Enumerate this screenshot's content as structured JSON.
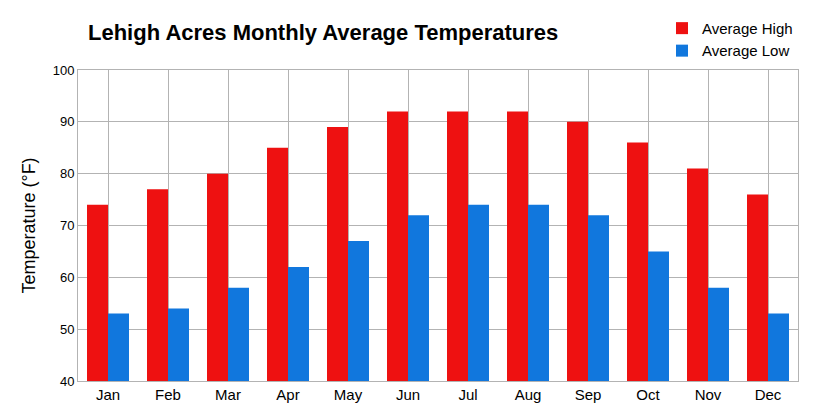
{
  "chart_data": {
    "type": "bar",
    "title": "Lehigh Acres Monthly Average Temperatures",
    "y_label": "Temperature (°F)",
    "categories": [
      "Jan",
      "Feb",
      "Mar",
      "Apr",
      "May",
      "Jun",
      "Jul",
      "Aug",
      "Sep",
      "Oct",
      "Nov",
      "Dec"
    ],
    "series": [
      {
        "name": "Average High",
        "color": "#ee1111",
        "values": [
          74,
          77,
          80,
          85,
          89,
          92,
          92,
          92,
          90,
          86,
          81,
          76
        ]
      },
      {
        "name": "Average Low",
        "color": "#1177dd",
        "values": [
          53,
          54,
          58,
          62,
          67,
          72,
          74,
          74,
          72,
          65,
          58,
          53
        ]
      }
    ],
    "ylim": [
      40,
      100
    ],
    "yticks": [
      40,
      50,
      60,
      70,
      80,
      90,
      100
    ],
    "grid": true,
    "legend": "top right"
  }
}
